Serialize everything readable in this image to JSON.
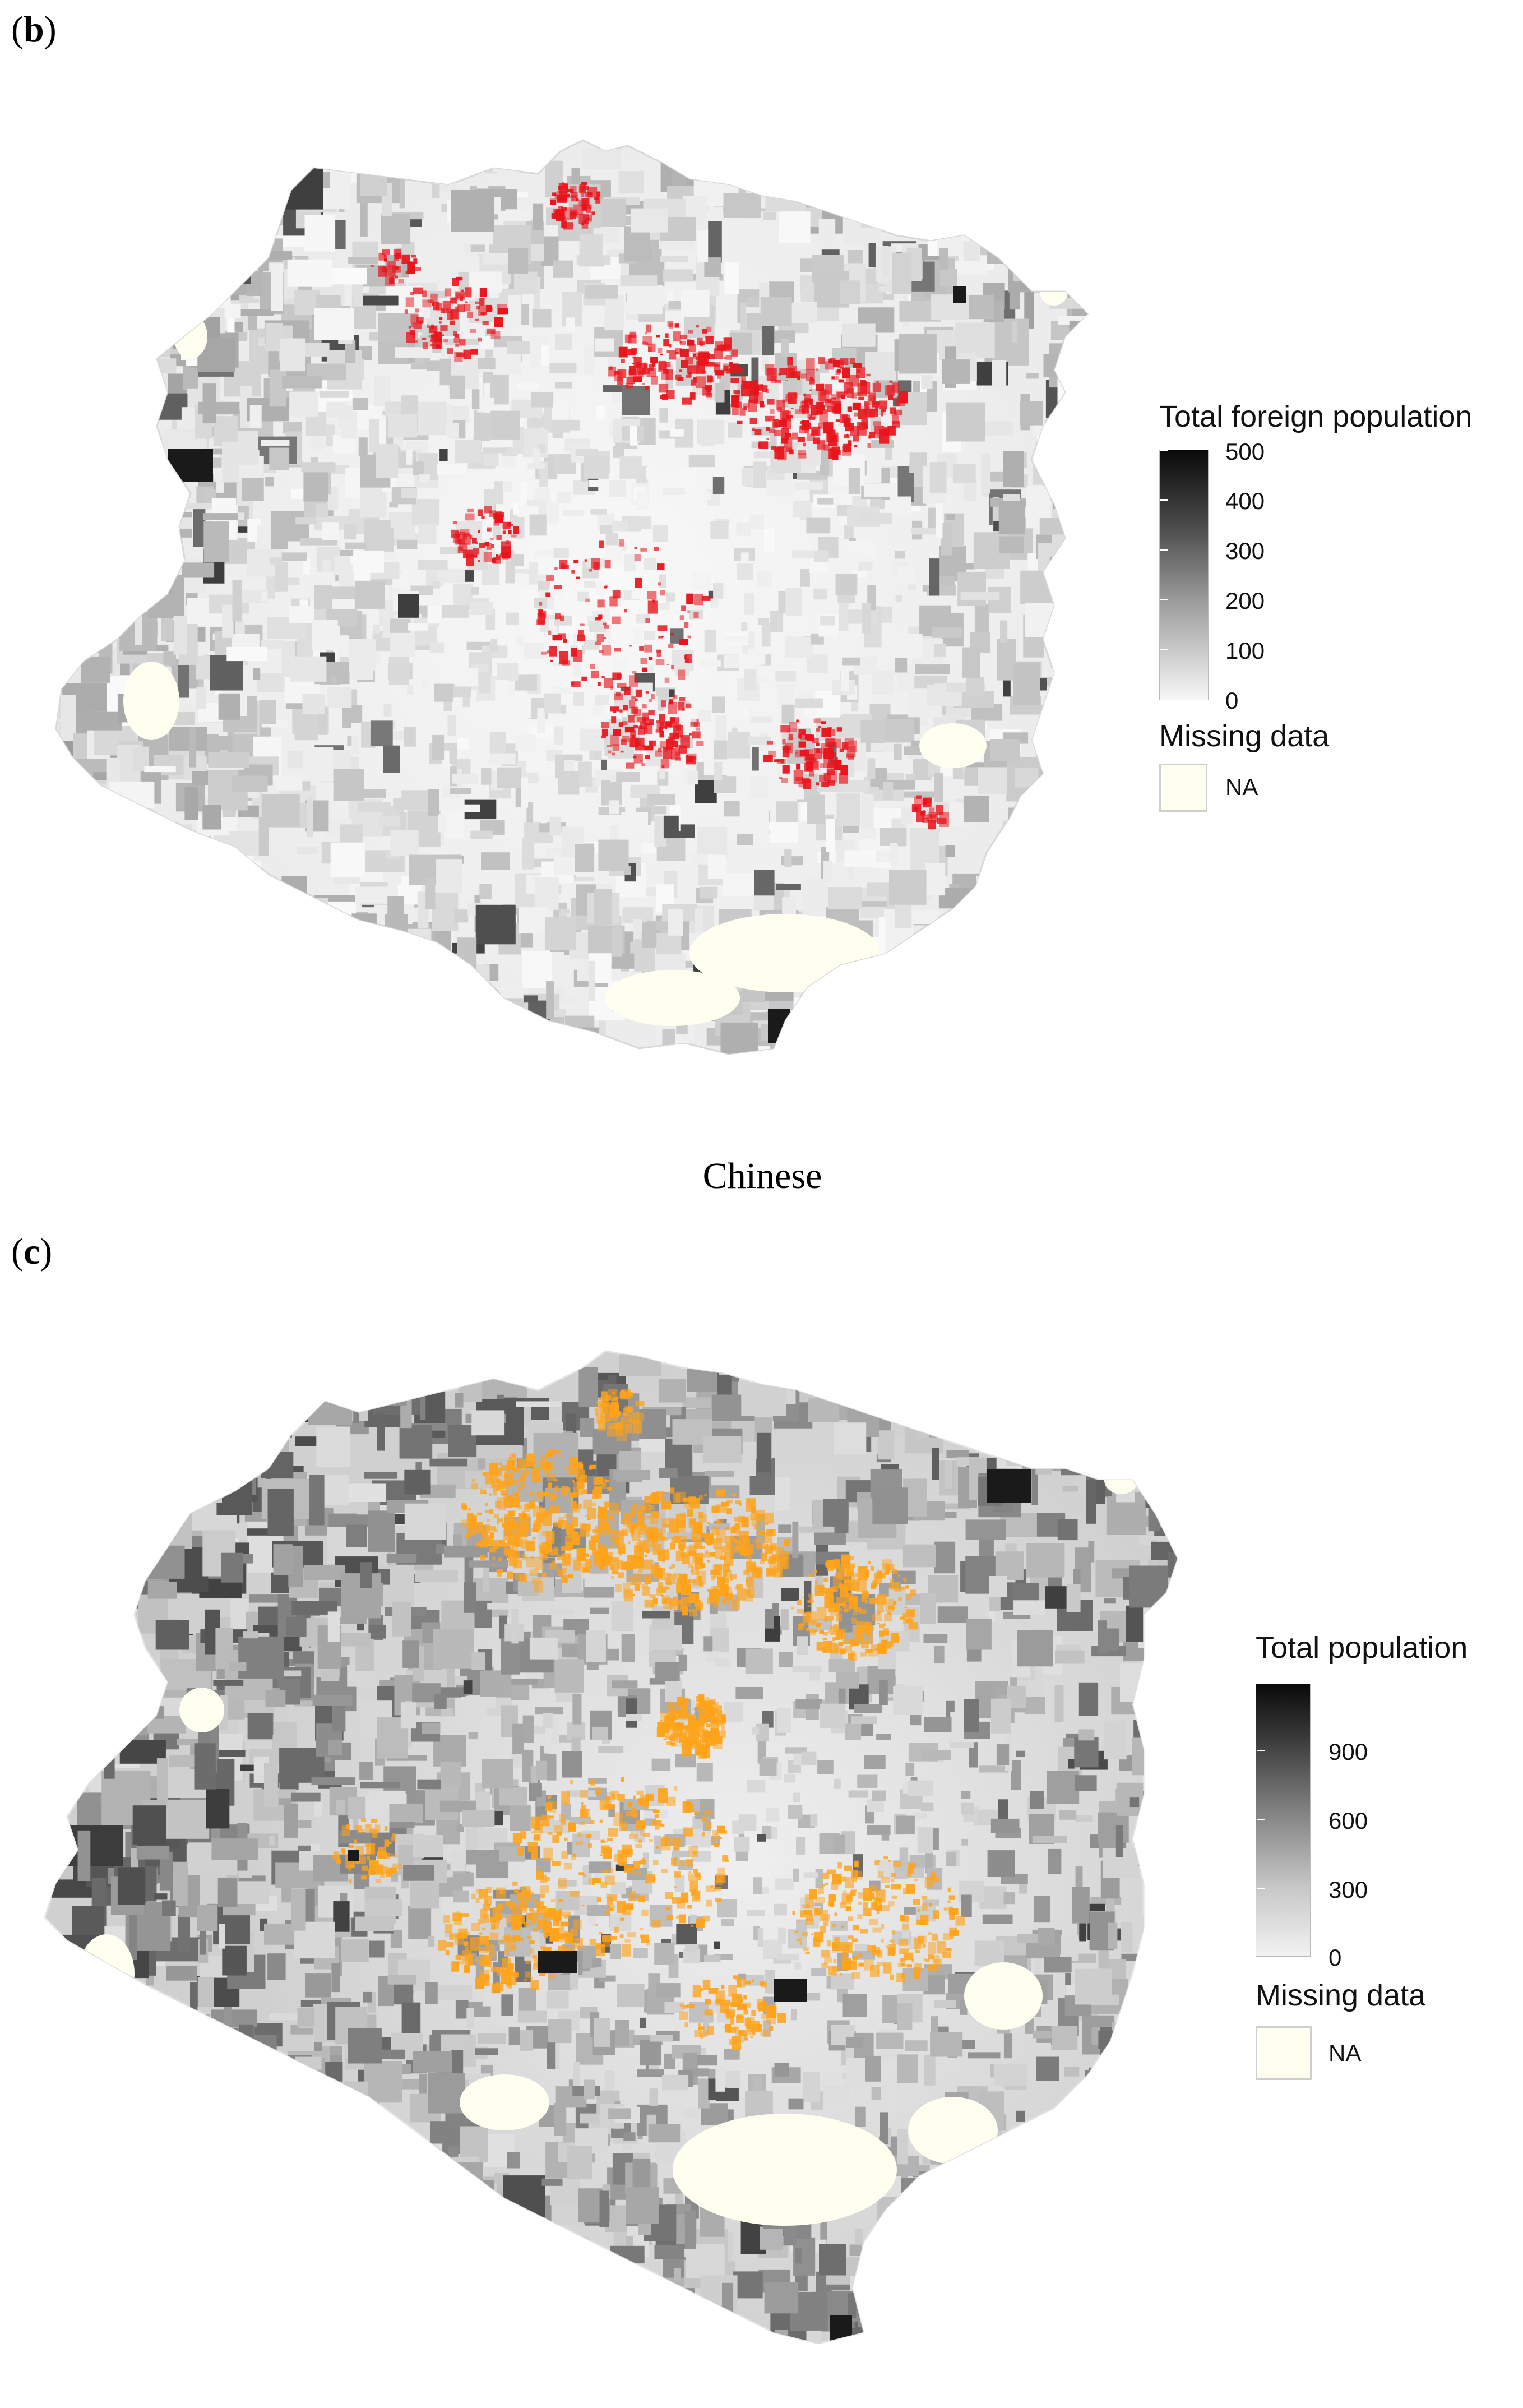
{
  "panel_b": {
    "label_open": "(",
    "label_letter": "b",
    "label_close": ")",
    "legend": {
      "title": "Total foreign population",
      "ticks": [
        "500",
        "400",
        "300",
        "200",
        "100",
        "0"
      ],
      "missing_title": "Missing data",
      "na_label": "NA"
    },
    "highlight_color": "#e8141c"
  },
  "caption_middle": "Chinese",
  "panel_c": {
    "label_open": "(",
    "label_letter": "c",
    "label_close": ")",
    "legend": {
      "title": "Total population",
      "ticks": [
        "900",
        "600",
        "300",
        "0"
      ],
      "missing_title": "Missing data",
      "na_label": "NA"
    },
    "highlight_color": "#ffa31a"
  },
  "colors": {
    "missing": "#fffff0",
    "scale_low": "#f5f5f5",
    "scale_high": "#0a0a0a"
  }
}
